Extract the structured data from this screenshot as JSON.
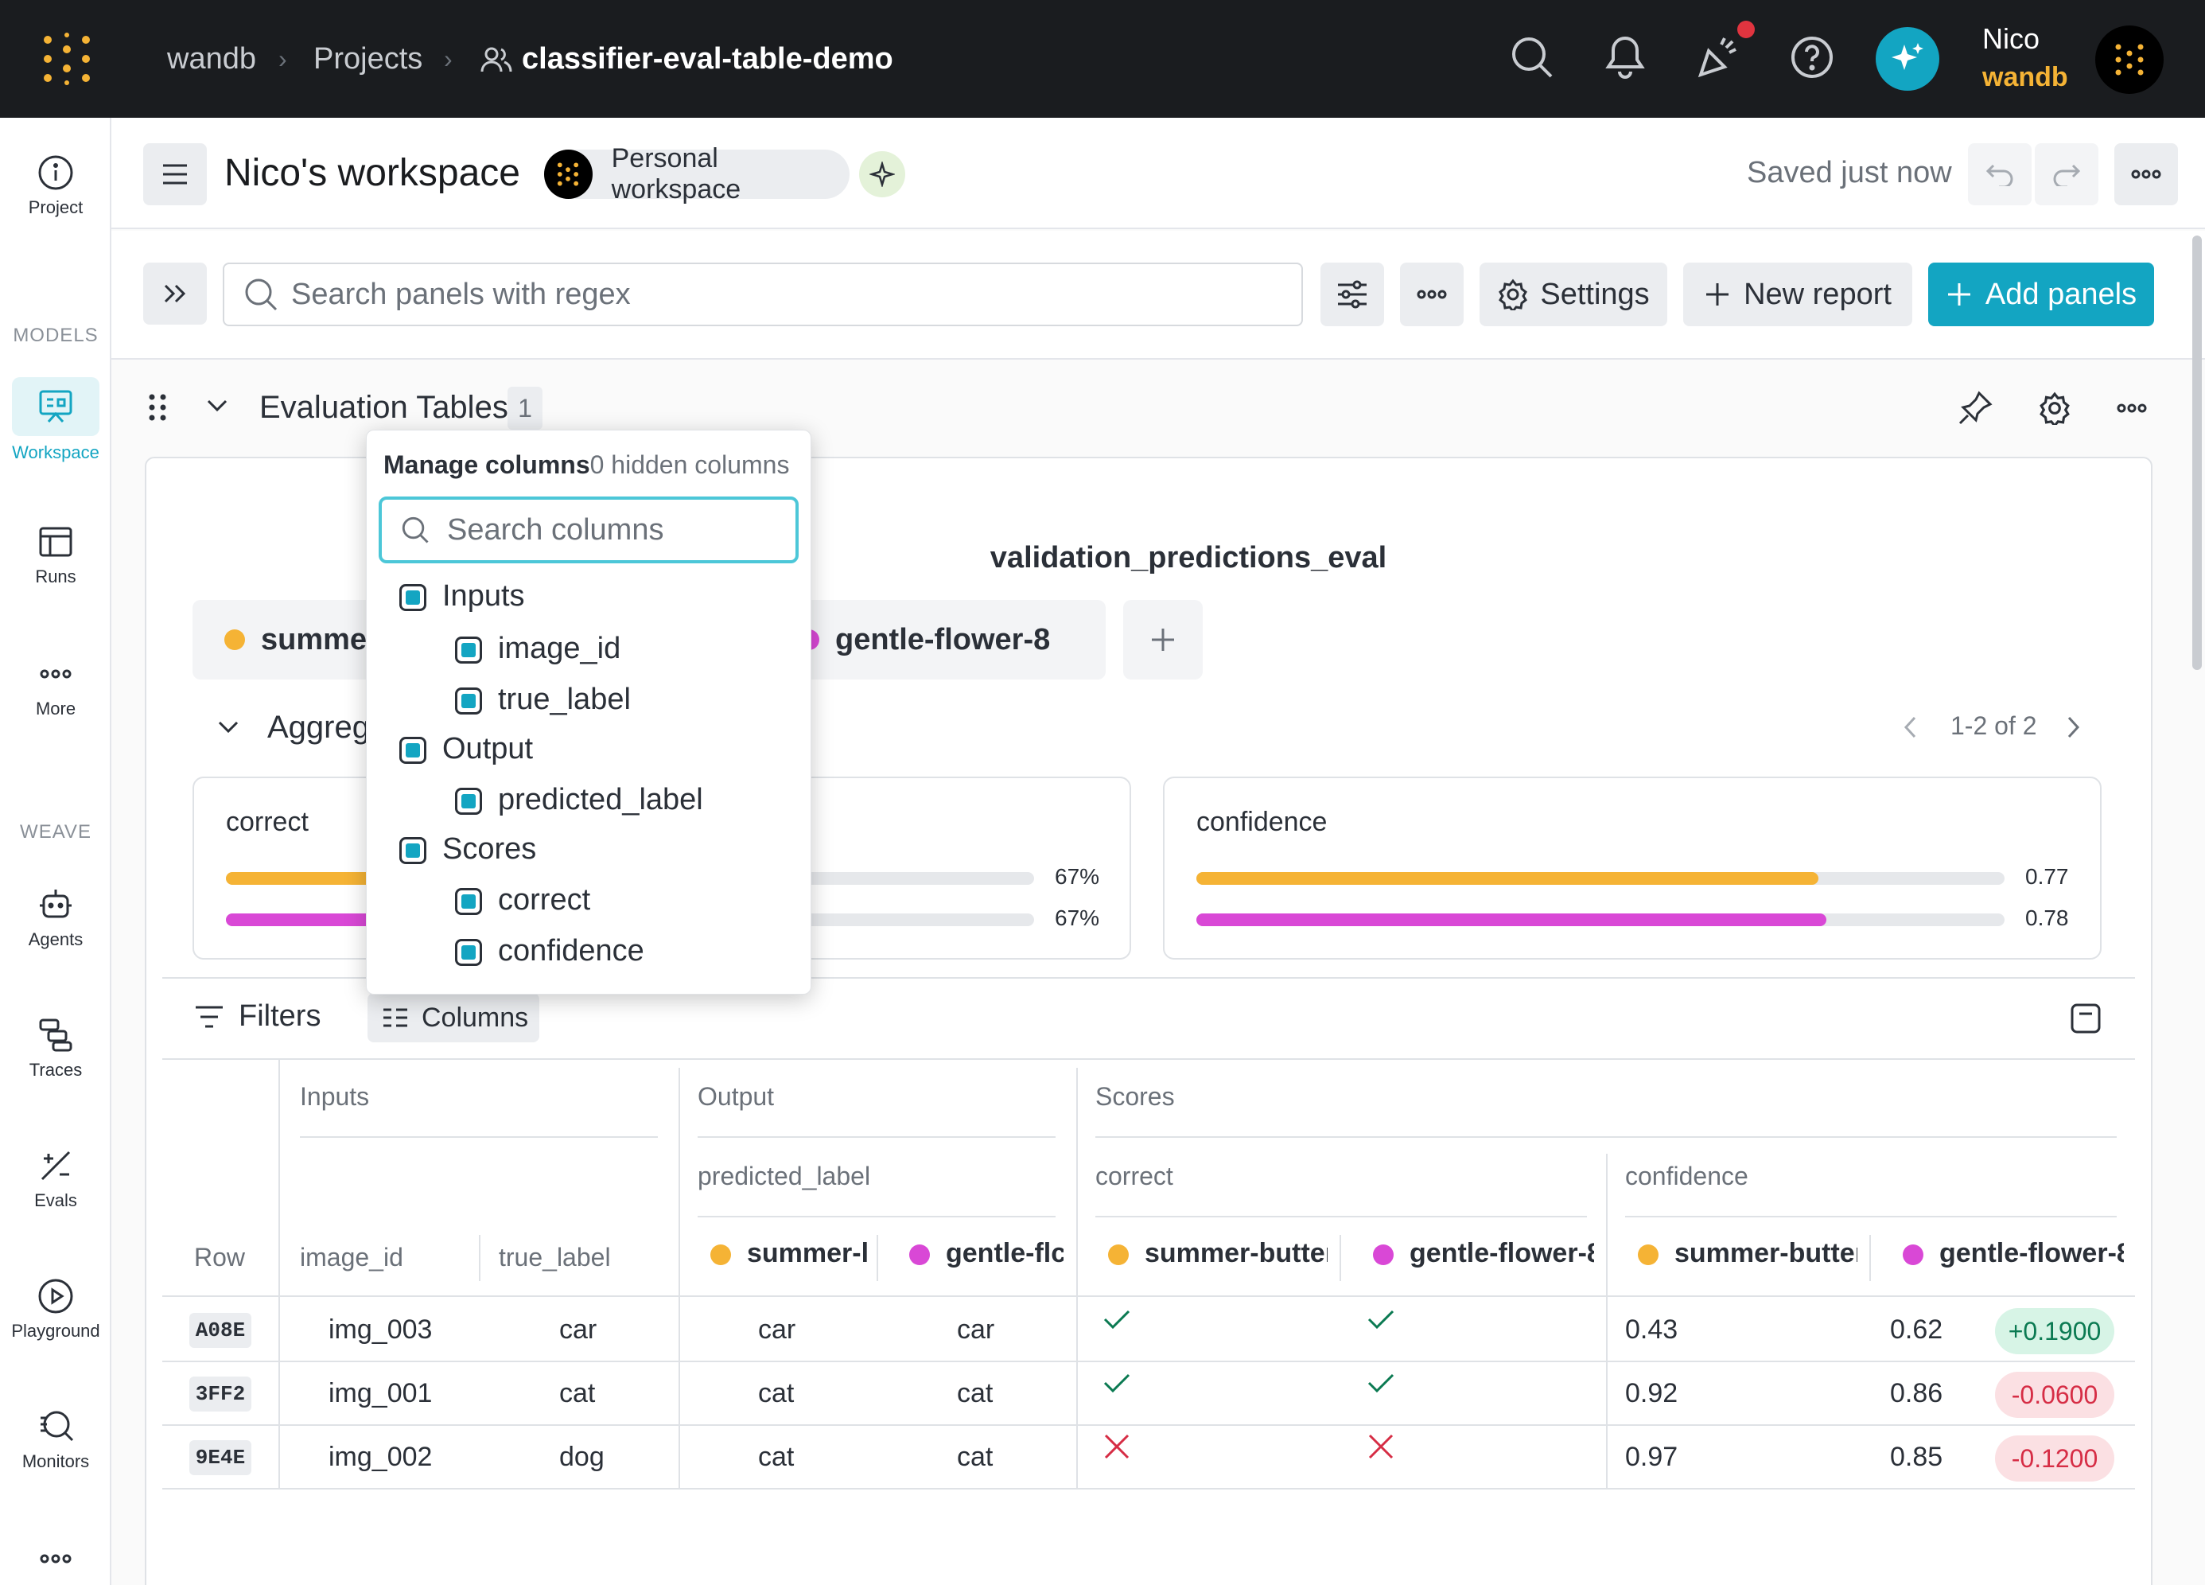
{
  "topbar": {
    "breadcrumb": [
      "wandb",
      "Projects",
      "classifier-eval-table-demo"
    ],
    "user_name": "Nico",
    "user_org": "wandb"
  },
  "rail": {
    "project_label": "Project",
    "models_section": "MODELS",
    "workspace_label": "Workspace",
    "runs_label": "Runs",
    "more_label": "More",
    "weave_section": "WEAVE",
    "agents_label": "Agents",
    "traces_label": "Traces",
    "evals_label": "Evals",
    "playground_label": "Playground",
    "monitors_label": "Monitors"
  },
  "workspace": {
    "title": "Nico's workspace",
    "badge": "Personal workspace",
    "saved_status": "Saved just now"
  },
  "toolbar": {
    "search_placeholder": "Search panels with regex",
    "settings_label": "Settings",
    "new_report_label": "New report",
    "add_panels_label": "Add panels"
  },
  "section": {
    "title": "Evaluation Tables",
    "count": "1"
  },
  "panel": {
    "title": "validation_predictions_eval",
    "runs": [
      {
        "name": "summer-butterfly",
        "visible_name": "summer",
        "color": "#f5b335"
      },
      {
        "name": "gentle-flower-8",
        "visible_name": "gentle-flower-8",
        "color": "#d948d6"
      }
    ],
    "aggregates_label": "Aggreg",
    "pager": "1-2 of 2",
    "metrics": [
      {
        "name": "correct",
        "values": [
          0.67,
          0.67
        ],
        "labels": [
          "67%",
          "67%"
        ]
      },
      {
        "name": "confidence",
        "values": [
          0.77,
          0.78
        ],
        "labels": [
          "0.77",
          "0.78"
        ]
      }
    ],
    "filters_label": "Filters",
    "columns_label": "Columns"
  },
  "table": {
    "groups": [
      "Inputs",
      "Output",
      "Scores"
    ],
    "subgroups": [
      "predicted_label",
      "correct",
      "confidence"
    ],
    "columns": [
      "Row",
      "image_id",
      "true_label",
      "summer-l",
      "gentle-flc",
      "summer-butter",
      "gentle-flower-8",
      "summer-butter",
      "gentle-flower-8"
    ],
    "rows": [
      {
        "id": "A08E",
        "image_id": "img_003",
        "true_label": "car",
        "pred_a": "car",
        "pred_b": "car",
        "correct_a": true,
        "correct_b": true,
        "conf_a": "0.43",
        "conf_b": "0.62",
        "delta": "+0.1900",
        "delta_pos": true
      },
      {
        "id": "3FF2",
        "image_id": "img_001",
        "true_label": "cat",
        "pred_a": "cat",
        "pred_b": "cat",
        "correct_a": true,
        "correct_b": true,
        "conf_a": "0.92",
        "conf_b": "0.86",
        "delta": "-0.0600",
        "delta_pos": false
      },
      {
        "id": "9E4E",
        "image_id": "img_002",
        "true_label": "dog",
        "pred_a": "cat",
        "pred_b": "cat",
        "correct_a": false,
        "correct_b": false,
        "conf_a": "0.97",
        "conf_b": "0.85",
        "delta": "-0.1200",
        "delta_pos": false
      }
    ]
  },
  "popup": {
    "title": "Manage columns",
    "hidden_count": "0 hidden columns",
    "search_placeholder": "Search columns",
    "items": [
      {
        "label": "Inputs",
        "level": 0
      },
      {
        "label": "image_id",
        "level": 1
      },
      {
        "label": "true_label",
        "level": 1
      },
      {
        "label": "Output",
        "level": 0
      },
      {
        "label": "predicted_label",
        "level": 1
      },
      {
        "label": "Scores",
        "level": 0
      },
      {
        "label": "correct",
        "level": 1
      },
      {
        "label": "confidence",
        "level": 1
      }
    ]
  },
  "colors": {
    "accent": "#13a5c2",
    "topbar": "#1a1c1f",
    "positive": "#0b7a52",
    "negative": "#d62d45"
  }
}
